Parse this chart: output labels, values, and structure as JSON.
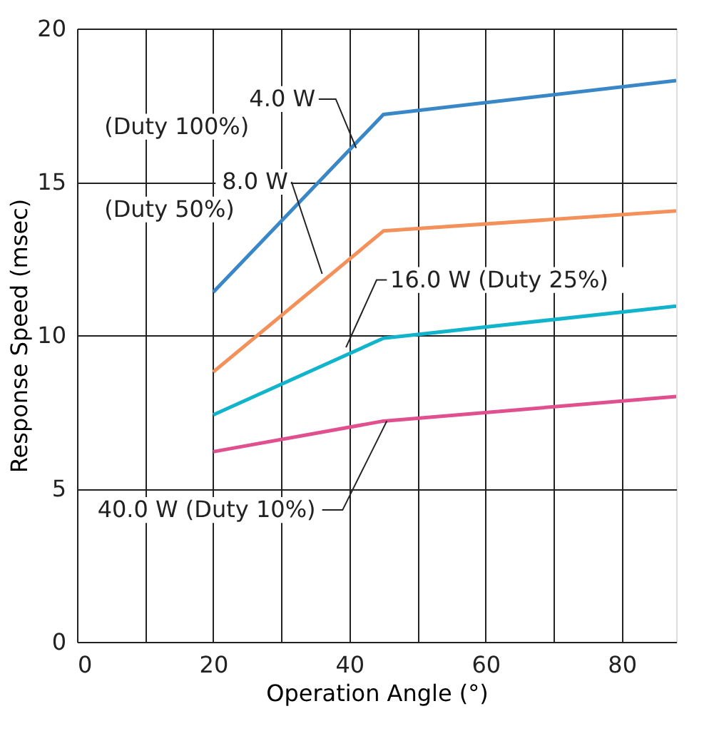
{
  "chart_data": {
    "type": "line",
    "xlabel": "Operation Angle (°)",
    "ylabel": "Response Speed (msec)",
    "x": [
      20,
      45,
      88
    ],
    "series": [
      {
        "name": "4.0 W (Duty 100%)",
        "color": "#3a87c8",
        "values": [
          11.4,
          17.2,
          18.3
        ]
      },
      {
        "name": "8.0 W (Duty 50%)",
        "color": "#f4905a",
        "values": [
          8.8,
          13.4,
          14.05
        ]
      },
      {
        "name": "16.0 W (Duty 25%)",
        "color": "#12b4cc",
        "values": [
          7.4,
          9.9,
          10.95
        ]
      },
      {
        "name": "40.0 W (Duty 10%)",
        "color": "#e0508f",
        "values": [
          6.2,
          7.2,
          8.0
        ]
      }
    ],
    "xlim": [
      0,
      88
    ],
    "xticks": [
      0,
      {
        "value": 10,
        "label": null
      },
      20,
      {
        "value": 30,
        "label": null
      },
      40,
      {
        "value": 50,
        "label": null
      },
      60,
      {
        "value": 70,
        "label": null
      },
      80
    ],
    "ylim": [
      0,
      20
    ],
    "yticks": [
      0,
      5,
      10,
      15,
      20
    ],
    "grid": true,
    "legend": false,
    "marker": "none",
    "line_style": "solid"
  }
}
